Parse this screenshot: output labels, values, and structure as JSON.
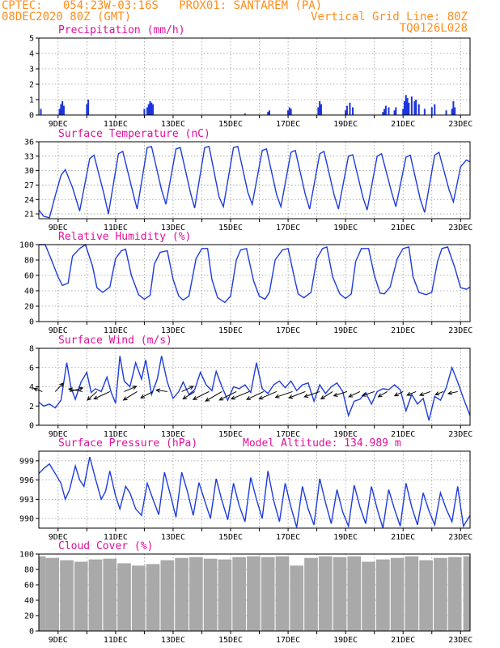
{
  "header": {
    "line1": "CPTEC:   054:23W-03:16S   PROX01: SANTAREM (PA)",
    "line2": "08DEC2020 80Z (GMT)",
    "grid_note": "Vertical Grid Line: 80Z",
    "run_code": "TQ0126L028"
  },
  "date_labels": [
    "9DEC",
    "11DEC",
    "13DEC",
    "15DEC",
    "17DEC",
    "19DEC",
    "21DEC",
    "23DEC"
  ],
  "colors": {
    "line": "#1e3cdc",
    "bar": "#1a33dd",
    "title": "#e0109a",
    "header": "#ff8c1a",
    "cloud": "#a9a9a9",
    "wind_arrow": "#000000"
  },
  "chart_data": [
    {
      "id": "precip",
      "type": "bar",
      "title": "Precipitation (mm/h)",
      "ylim": [
        0,
        5
      ],
      "yticks": [
        0,
        1,
        2,
        3,
        4,
        5
      ],
      "xlim": [
        8.33,
        23.33
      ],
      "grid": true,
      "x": [
        8.4,
        9.05,
        9.1,
        9.15,
        9.2,
        10.0,
        10.05,
        12.0,
        12.1,
        12.15,
        12.2,
        12.25,
        12.3,
        15.5,
        16.3,
        16.35,
        17.0,
        17.05,
        17.1,
        18.05,
        18.1,
        18.15,
        19.0,
        19.05,
        19.15,
        19.25,
        20.3,
        20.35,
        20.4,
        20.5,
        20.7,
        20.75,
        21.0,
        21.05,
        21.1,
        21.15,
        21.2,
        21.3,
        21.4,
        21.45,
        21.55,
        21.75,
        22.0,
        22.1,
        22.5,
        22.7,
        22.75,
        22.8
      ],
      "values": [
        0.4,
        0.4,
        0.7,
        0.9,
        0.6,
        0.7,
        1.0,
        0.4,
        0.5,
        0.7,
        0.9,
        0.8,
        0.7,
        0.1,
        0.2,
        0.3,
        0.3,
        0.5,
        0.4,
        0.5,
        0.9,
        0.7,
        0.3,
        0.6,
        0.8,
        0.5,
        0.2,
        0.4,
        0.6,
        0.5,
        0.3,
        0.5,
        0.4,
        0.9,
        1.3,
        1.1,
        0.8,
        1.2,
        0.9,
        1.0,
        0.7,
        0.4,
        0.5,
        0.7,
        0.3,
        0.4,
        0.9,
        0.5
      ]
    },
    {
      "id": "temp",
      "type": "line",
      "title": "Surface Temperature (nC)",
      "ylim": [
        20,
        36
      ],
      "yticks": [
        21,
        24,
        27,
        30,
        33,
        36
      ],
      "xlim": [
        8.33,
        23.33
      ],
      "grid": true,
      "x": [
        8.33,
        8.5,
        8.7,
        8.9,
        9.1,
        9.25,
        9.5,
        9.75,
        10.1,
        10.25,
        10.6,
        10.75,
        11.1,
        11.25,
        11.6,
        11.75,
        12.1,
        12.25,
        12.6,
        12.75,
        13.1,
        13.25,
        13.6,
        13.75,
        14.1,
        14.25,
        14.6,
        14.75,
        15.1,
        15.25,
        15.6,
        15.75,
        16.1,
        16.25,
        16.6,
        16.75,
        17.1,
        17.25,
        17.6,
        17.75,
        18.1,
        18.25,
        18.6,
        18.75,
        19.1,
        19.25,
        19.6,
        19.75,
        20.1,
        20.25,
        20.6,
        20.75,
        21.1,
        21.25,
        21.6,
        21.75,
        22.1,
        22.25,
        22.6,
        22.75,
        23.0,
        23.2,
        23.33
      ],
      "values": [
        21.8,
        20.5,
        20.2,
        24.8,
        29.0,
        30.2,
        26.5,
        21.6,
        32.5,
        33.2,
        25.0,
        21.0,
        33.5,
        34.0,
        25.5,
        22.0,
        34.8,
        35.0,
        26.0,
        23.0,
        34.5,
        34.8,
        25.5,
        22.2,
        34.8,
        35.0,
        24.5,
        22.5,
        34.8,
        35.0,
        25.5,
        23.0,
        34.2,
        34.5,
        25.0,
        22.5,
        33.8,
        34.2,
        25.0,
        22.0,
        33.5,
        34.0,
        25.0,
        22.0,
        33.0,
        33.3,
        24.5,
        21.8,
        33.0,
        33.5,
        25.5,
        22.5,
        32.8,
        33.2,
        24.0,
        21.3,
        33.2,
        33.8,
        26.0,
        23.5,
        30.8,
        32.2,
        31.8
      ]
    },
    {
      "id": "rh",
      "type": "line",
      "title": "Relative Humidity (%)",
      "ylim": [
        0,
        100
      ],
      "yticks": [
        0,
        20,
        40,
        60,
        80,
        100
      ],
      "xlim": [
        8.33,
        23.33
      ],
      "grid": true,
      "x": [
        8.33,
        8.55,
        8.75,
        9.0,
        9.15,
        9.35,
        9.5,
        9.75,
        9.95,
        10.2,
        10.35,
        10.55,
        10.8,
        11.0,
        11.2,
        11.35,
        11.55,
        11.8,
        12.0,
        12.2,
        12.35,
        12.55,
        12.8,
        13.0,
        13.2,
        13.35,
        13.55,
        13.8,
        14.0,
        14.2,
        14.35,
        14.55,
        14.8,
        15.0,
        15.2,
        15.35,
        15.55,
        15.8,
        16.0,
        16.2,
        16.35,
        16.55,
        16.8,
        17.0,
        17.2,
        17.35,
        17.55,
        17.8,
        18.0,
        18.2,
        18.35,
        18.55,
        18.8,
        19.0,
        19.2,
        19.35,
        19.55,
        19.8,
        20.0,
        20.2,
        20.35,
        20.55,
        20.8,
        21.0,
        21.2,
        21.35,
        21.55,
        21.8,
        22.0,
        22.2,
        22.35,
        22.55,
        22.8,
        23.0,
        23.2,
        23.33
      ],
      "values": [
        100,
        100,
        82,
        58,
        47,
        50,
        85,
        95,
        100,
        72,
        44,
        38,
        45,
        82,
        92,
        94,
        60,
        35,
        29,
        34,
        75,
        90,
        92,
        55,
        33,
        28,
        33,
        82,
        95,
        95,
        55,
        31,
        25,
        33,
        80,
        93,
        95,
        53,
        33,
        29,
        38,
        80,
        93,
        95,
        60,
        36,
        31,
        38,
        82,
        95,
        97,
        58,
        36,
        30,
        36,
        78,
        95,
        95,
        60,
        37,
        36,
        45,
        82,
        95,
        97,
        58,
        38,
        35,
        38,
        78,
        95,
        97,
        70,
        44,
        42,
        45
      ]
    },
    {
      "id": "wind",
      "type": "line",
      "title": "Surface Wind (m/s)",
      "ylim": [
        0,
        8
      ],
      "yticks": [
        0,
        2,
        4,
        6,
        8
      ],
      "xlim": [
        8.33,
        23.33
      ],
      "grid": true,
      "x": [
        8.33,
        8.5,
        8.7,
        8.9,
        9.1,
        9.3,
        9.45,
        9.6,
        9.8,
        10.0,
        10.15,
        10.3,
        10.5,
        10.7,
        10.85,
        11.0,
        11.15,
        11.3,
        11.5,
        11.7,
        11.9,
        12.05,
        12.25,
        12.45,
        12.6,
        12.8,
        13.0,
        13.2,
        13.35,
        13.55,
        13.75,
        13.95,
        14.15,
        14.35,
        14.5,
        14.7,
        14.9,
        15.1,
        15.3,
        15.5,
        15.7,
        15.9,
        16.1,
        16.3,
        16.5,
        16.7,
        16.9,
        17.1,
        17.3,
        17.5,
        17.7,
        17.9,
        18.1,
        18.3,
        18.5,
        18.7,
        18.9,
        19.1,
        19.3,
        19.5,
        19.7,
        19.9,
        20.1,
        20.3,
        20.5,
        20.7,
        20.9,
        21.1,
        21.3,
        21.5,
        21.7,
        21.9,
        22.1,
        22.3,
        22.5,
        22.7,
        22.9,
        23.1,
        23.33
      ],
      "values": [
        2.4,
        2.0,
        2.2,
        1.8,
        2.6,
        6.5,
        3.9,
        2.7,
        4.5,
        5.5,
        3.4,
        3.8,
        3.5,
        5.0,
        3.4,
        2.3,
        7.2,
        4.6,
        4.0,
        6.5,
        4.8,
        6.8,
        3.2,
        4.8,
        7.2,
        4.5,
        2.8,
        3.5,
        4.5,
        3.2,
        3.7,
        5.5,
        4.2,
        3.6,
        5.6,
        4.0,
        2.6,
        4.0,
        3.8,
        4.2,
        3.4,
        6.5,
        3.8,
        3.3,
        4.2,
        4.6,
        3.9,
        4.6,
        3.6,
        4.2,
        4.4,
        2.5,
        4.2,
        3.3,
        4.0,
        4.4,
        3.5,
        1.0,
        2.5,
        2.7,
        3.4,
        2.2,
        3.5,
        3.8,
        3.7,
        4.2,
        3.7,
        1.5,
        3.2,
        2.2,
        2.8,
        0.5,
        3.0,
        2.6,
        3.9,
        6.0,
        4.5,
        2.8,
        1.0
      ]
    },
    {
      "id": "pressure",
      "type": "line",
      "title": "Surface Pressure (hPa)",
      "subtitle": "Model Altitude: 134.989 m",
      "ylim": [
        988.5,
        1000.5
      ],
      "yticks": [
        990,
        993,
        996,
        999
      ],
      "xlim": [
        8.33,
        23.33
      ],
      "grid": true,
      "x": [
        8.33,
        8.5,
        8.7,
        8.9,
        9.1,
        9.25,
        9.4,
        9.6,
        9.75,
        9.9,
        10.1,
        10.3,
        10.5,
        10.65,
        10.8,
        11.0,
        11.15,
        11.35,
        11.5,
        11.7,
        11.9,
        12.1,
        12.3,
        12.5,
        12.7,
        12.9,
        13.1,
        13.3,
        13.5,
        13.7,
        13.9,
        14.1,
        14.3,
        14.5,
        14.7,
        14.9,
        15.1,
        15.3,
        15.5,
        15.7,
        15.9,
        16.1,
        16.3,
        16.5,
        16.7,
        16.9,
        17.1,
        17.3,
        17.5,
        17.7,
        17.9,
        18.1,
        18.3,
        18.5,
        18.7,
        18.9,
        19.1,
        19.3,
        19.5,
        19.7,
        19.9,
        20.1,
        20.3,
        20.5,
        20.7,
        20.9,
        21.1,
        21.3,
        21.5,
        21.7,
        21.9,
        22.1,
        22.3,
        22.5,
        22.7,
        22.9,
        23.1,
        23.33
      ],
      "values": [
        997.0,
        997.8,
        998.5,
        997.0,
        995.5,
        993.0,
        994.5,
        998.2,
        996.0,
        995.0,
        999.6,
        996.2,
        993.0,
        994.2,
        997.4,
        993.5,
        991.5,
        995.0,
        994.0,
        991.5,
        990.5,
        995.5,
        993.0,
        990.6,
        997.2,
        993.8,
        990.2,
        997.2,
        994.2,
        990.5,
        995.6,
        992.8,
        990.0,
        996.2,
        992.8,
        989.8,
        995.5,
        992.0,
        989.5,
        996.4,
        993.0,
        990.0,
        997.4,
        992.8,
        989.5,
        995.5,
        991.8,
        988.6,
        995.0,
        991.5,
        989.0,
        996.2,
        992.5,
        989.2,
        994.5,
        991.0,
        988.8,
        995.2,
        991.8,
        989.2,
        995.0,
        991.5,
        988.5,
        994.5,
        991.5,
        988.8,
        995.5,
        991.8,
        989.0,
        994.0,
        991.2,
        989.0,
        994.0,
        991.5,
        989.5,
        995.0,
        988.8,
        990.5
      ]
    },
    {
      "id": "cloud",
      "type": "bar",
      "title": "Cloud Cover (%)",
      "ylim": [
        0,
        100
      ],
      "yticks": [
        0,
        20,
        40,
        60,
        80,
        100
      ],
      "xlim": [
        8.33,
        23.33
      ],
      "grid": true,
      "x": [
        8.33,
        8.8,
        9.3,
        9.8,
        10.3,
        10.8,
        11.3,
        11.8,
        12.3,
        12.8,
        13.3,
        13.8,
        14.3,
        14.8,
        15.3,
        15.8,
        16.3,
        16.8,
        17.3,
        17.8,
        18.3,
        18.8,
        19.3,
        19.8,
        20.3,
        20.8,
        21.3,
        21.8,
        22.3,
        22.8,
        23.33
      ],
      "values": [
        97,
        95,
        92,
        90,
        93,
        94,
        88,
        85,
        87,
        92,
        95,
        96,
        94,
        93,
        96,
        97,
        96,
        97,
        85,
        95,
        97,
        96,
        97,
        90,
        93,
        95,
        97,
        92,
        95,
        96,
        97
      ]
    }
  ],
  "wind_vectors": {
    "x": [
      8.45,
      8.9,
      9.4,
      9.85,
      10.35,
      10.8,
      11.3,
      11.75,
      12.3,
      12.8,
      13.3,
      13.75,
      14.25,
      14.7,
      15.2,
      15.65,
      16.15,
      16.6,
      17.15,
      17.6,
      18.1,
      18.55,
      19.05,
      19.5,
      20.0,
      20.45,
      21.0,
      21.45,
      21.95,
      22.4,
      22.9
    ],
    "u": [
      -1.6,
      1.5,
      2.5,
      -2.6,
      -1.8,
      -3.0,
      2.3,
      -2.6,
      -2.3,
      -2.1,
      2.2,
      -2.2,
      -3.0,
      -3.1,
      -3.2,
      -3.4,
      -3.2,
      -3.3,
      -3.2,
      -3.1,
      -2.9,
      -2.2,
      -2.5,
      -2.1,
      -2.3,
      -1.7,
      -1.6,
      -1.7,
      -2.0,
      -1.5,
      -1.8
    ],
    "v": [
      0.6,
      1.6,
      0.7,
      0.5,
      -1.6,
      -1.4,
      1.0,
      -1.6,
      -1.2,
      0.3,
      1.0,
      -1.4,
      -1.5,
      -1.8,
      -1.6,
      -1.4,
      -1.5,
      -1.4,
      -1.1,
      -1.2,
      -1.0,
      -1.4,
      -0.8,
      -1.0,
      -0.8,
      -1.0,
      -0.8,
      -0.7,
      -0.7,
      -0.6,
      -0.4
    ]
  }
}
